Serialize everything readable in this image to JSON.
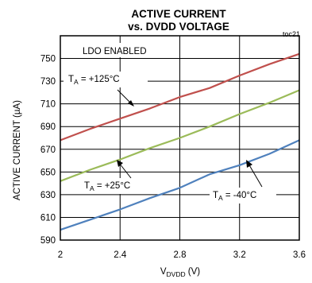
{
  "chart_data": {
    "type": "line",
    "title_line1": "ACTIVE CURRENT",
    "title_line2": "vs. DVDD VOLTAGE",
    "tag": "toc21",
    "xlabel_main": "V",
    "xlabel_sub": "DVDD",
    "xlabel_unit": " (V)",
    "ylabel": "ACTIVE CURRENT (µA)",
    "xlim": [
      2,
      3.6
    ],
    "ylim": [
      590,
      770
    ],
    "xticks": [
      2,
      2.4,
      2.8,
      3.2,
      3.6
    ],
    "xtick_labels": [
      "2",
      "2.4",
      "2.8",
      "3.2",
      "3.6"
    ],
    "yticks": [
      590,
      610,
      630,
      650,
      670,
      690,
      710,
      730,
      750
    ],
    "ytick_labels": [
      "590",
      "610",
      "630",
      "650",
      "670",
      "690",
      "710",
      "730",
      "750"
    ],
    "grid": true,
    "series": [
      {
        "name": "TA = +125°C",
        "color": "#c0504d",
        "x": [
          2.0,
          2.2,
          2.4,
          2.6,
          2.8,
          3.0,
          3.2,
          3.4,
          3.6
        ],
        "y": [
          678,
          688,
          697,
          706,
          716,
          724,
          735,
          745,
          754
        ]
      },
      {
        "name": "TA = +25°C",
        "color": "#9bbb59",
        "x": [
          2.0,
          2.2,
          2.4,
          2.6,
          2.8,
          3.0,
          3.2,
          3.4,
          3.6
        ],
        "y": [
          642,
          652,
          661,
          671,
          680,
          690,
          701,
          711,
          722
        ]
      },
      {
        "name": "TA = -40°C",
        "color": "#4f81bd",
        "x": [
          2.0,
          2.2,
          2.4,
          2.6,
          2.8,
          3.0,
          3.2,
          3.4,
          3.6
        ],
        "y": [
          599,
          608,
          617,
          627,
          636,
          648,
          656,
          666,
          678
        ]
      }
    ],
    "annotations": [
      {
        "text": "LDO ENABLED"
      },
      {
        "t": "T",
        "sub": "A",
        "rest": " = +125°C",
        "series": 0
      },
      {
        "t": "T",
        "sub": "A",
        "rest": " = +25°C",
        "series": 1
      },
      {
        "t": "T",
        "sub": "A",
        "rest": " = -40°C",
        "series": 2
      }
    ]
  }
}
